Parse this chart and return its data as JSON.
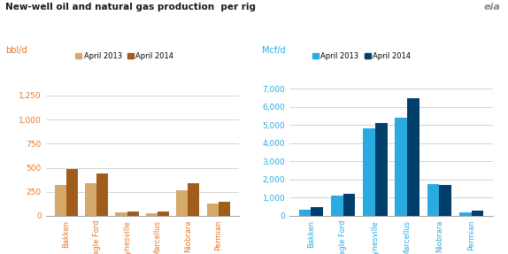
{
  "title": "New-well oil and natural gas production  per rig",
  "categories": [
    "Bakken",
    "Eagle Ford",
    "Haynesville",
    "Marcellus",
    "Niobrara",
    "Permian"
  ],
  "oil_2013": [
    325,
    340,
    35,
    30,
    265,
    130
  ],
  "oil_2014": [
    490,
    445,
    45,
    50,
    335,
    145
  ],
  "gas_2013": [
    320,
    1100,
    4850,
    5400,
    1750,
    195
  ],
  "gas_2014": [
    480,
    1225,
    5100,
    6500,
    1700,
    270
  ],
  "oil_color_2013": "#d4a96a",
  "oil_color_2014": "#a05c1a",
  "gas_color_2013": "#29abe2",
  "gas_color_2014": "#003f6b",
  "oil_ylabel": "bbl/d",
  "gas_ylabel": "Mcf/d",
  "oil_yticks": [
    0,
    250,
    500,
    750,
    1000,
    1250
  ],
  "gas_yticks": [
    0,
    1000,
    2000,
    3000,
    4000,
    5000,
    6000,
    7000
  ],
  "oil_ylim": [
    0,
    1450
  ],
  "gas_ylim": [
    0,
    7700
  ],
  "background_color": "#ffffff",
  "title_color": "#1a1a1a",
  "orange_color": "#e87722",
  "blue_color": "#29abe2",
  "grid_color": "#cccccc",
  "tick_label_color_oil": "#e87722",
  "tick_label_color_gas": "#29abe2"
}
